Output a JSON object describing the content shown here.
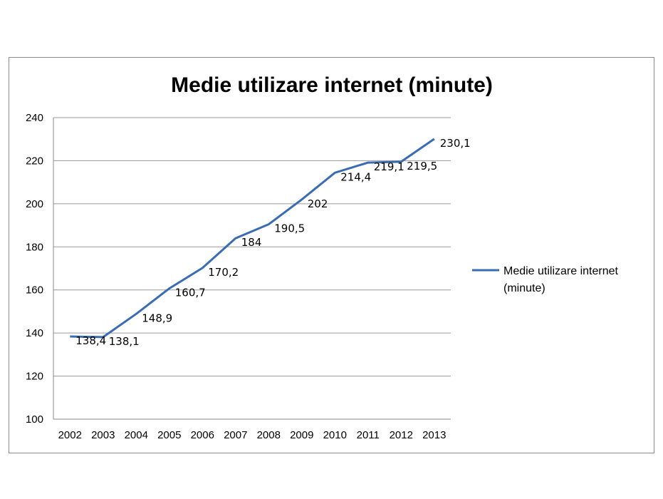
{
  "chart_data": {
    "type": "line",
    "title": "Medie utilizare internet (minute)",
    "categories": [
      "2002",
      "2003",
      "2004",
      "2005",
      "2006",
      "2007",
      "2008",
      "2009",
      "2010",
      "2011",
      "2012",
      "2013"
    ],
    "series": [
      {
        "name": "Medie utilizare internet (minute)",
        "legend_lines": [
          "Medie utilizare internet",
          "(minute)"
        ],
        "values": [
          138.4,
          138.1,
          148.9,
          160.7,
          170.2,
          184,
          190.5,
          202,
          214.4,
          219.1,
          219.5,
          230.1
        ],
        "labels": [
          "138,4",
          "138,1",
          "148,9",
          "160,7",
          "170,2",
          "184",
          "190,5",
          "202",
          "214,4",
          "219,1",
          "219,5",
          "230,1"
        ],
        "color": "#3a6cb5"
      }
    ],
    "ylim": [
      100,
      240
    ],
    "yticks": [
      "100",
      "120",
      "140",
      "160",
      "180",
      "200",
      "220",
      "240"
    ],
    "grid": true,
    "legend": "right"
  }
}
